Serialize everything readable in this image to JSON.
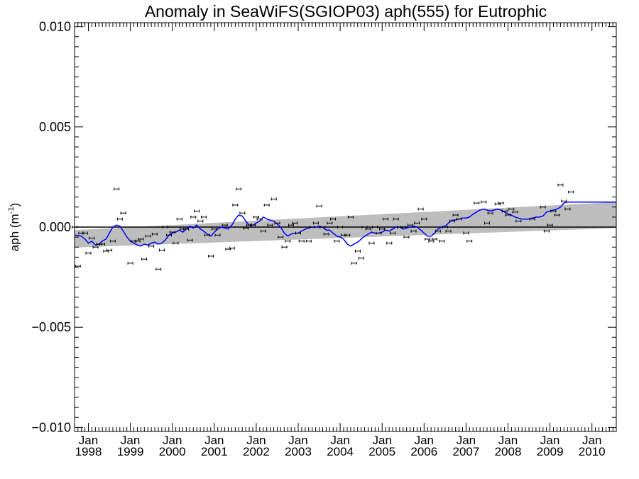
{
  "chart_data": {
    "type": "line",
    "title": "Anomaly in SeaWiFS(SGIOP03) aph(555) for Eutrophic",
    "ylabel_main": "aph (m",
    "ylabel_sup": "-1",
    "ylabel_close": ")",
    "xlim": [
      1997.67,
      2010.58
    ],
    "ylim": [
      -0.0102,
      0.0102
    ],
    "y_ticks": [
      {
        "value": 0.01,
        "label": "0.010"
      },
      {
        "value": 0.005,
        "label": "0.005"
      },
      {
        "value": 0.0,
        "label": "0.000"
      },
      {
        "value": -0.005,
        "label": "−0.005"
      },
      {
        "value": -0.01,
        "label": "−0.010"
      }
    ],
    "x_ticks": [
      {
        "value": 1998.0,
        "month": "Jan",
        "year": "1998"
      },
      {
        "value": 1999.0,
        "month": "Jan",
        "year": "1999"
      },
      {
        "value": 2000.0,
        "month": "Jan",
        "year": "2000"
      },
      {
        "value": 2001.0,
        "month": "Jan",
        "year": "2001"
      },
      {
        "value": 2002.0,
        "month": "Jan",
        "year": "2002"
      },
      {
        "value": 2003.0,
        "month": "Jan",
        "year": "2003"
      },
      {
        "value": 2004.0,
        "month": "Jan",
        "year": "2004"
      },
      {
        "value": 2005.0,
        "month": "Jan",
        "year": "2005"
      },
      {
        "value": 2006.0,
        "month": "Jan",
        "year": "2006"
      },
      {
        "value": 2007.0,
        "month": "Jan",
        "year": "2007"
      },
      {
        "value": 2008.0,
        "month": "Jan",
        "year": "2008"
      },
      {
        "value": 2009.0,
        "month": "Jan",
        "year": "2009"
      },
      {
        "value": 2010.0,
        "month": "Jan",
        "year": "2010"
      }
    ],
    "zero_line": 0.0,
    "trend_band": {
      "x": [
        1997.67,
        2010.58
      ],
      "lower": [
        -0.00102,
        -5e-05
      ],
      "upper": [
        -0.00015,
        0.00125
      ]
    },
    "points": [
      [
        1997.67,
        0.0
      ],
      [
        1997.75,
        -0.00195
      ],
      [
        1997.83,
        -0.0003
      ],
      [
        1997.92,
        -0.0003
      ],
      [
        1998.0,
        -0.0013
      ],
      [
        1998.08,
        -0.00055
      ],
      [
        1998.17,
        -0.001
      ],
      [
        1998.25,
        -0.00085
      ],
      [
        1998.33,
        -0.00085
      ],
      [
        1998.42,
        -0.0012
      ],
      [
        1998.5,
        -0.00115
      ],
      [
        1998.58,
        -0.0007
      ],
      [
        1998.67,
        0.0019
      ],
      [
        1998.75,
        0.0004
      ],
      [
        1998.83,
        0.0007
      ],
      [
        1999.0,
        -0.0018
      ],
      [
        1999.08,
        -0.0007
      ],
      [
        1999.17,
        -0.0007
      ],
      [
        1999.25,
        -0.0006
      ],
      [
        1999.33,
        -0.0016
      ],
      [
        1999.42,
        -0.00045
      ],
      [
        1999.5,
        -0.00095
      ],
      [
        1999.58,
        -0.00035
      ],
      [
        1999.67,
        -0.0021
      ],
      [
        1999.75,
        -0.00115
      ],
      [
        1999.83,
        0.0
      ],
      [
        1999.92,
        -0.0004
      ],
      [
        2000.0,
        -0.00025
      ],
      [
        2000.08,
        -0.0008
      ],
      [
        2000.17,
        0.0004
      ],
      [
        2000.25,
        -0.0001
      ],
      [
        2000.33,
        -0.0001
      ],
      [
        2000.42,
        -0.00065
      ],
      [
        2000.5,
        0.0005
      ],
      [
        2000.58,
        0.0008
      ],
      [
        2000.67,
        0.0003
      ],
      [
        2000.75,
        0.0005
      ],
      [
        2000.83,
        -0.0004
      ],
      [
        2000.92,
        -0.00145
      ],
      [
        2001.0,
        -0.0001
      ],
      [
        2001.08,
        -0.0004
      ],
      [
        2001.25,
        0.0001
      ],
      [
        2001.33,
        -0.0011
      ],
      [
        2001.42,
        -0.00105
      ],
      [
        2001.5,
        0.0011
      ],
      [
        2001.58,
        0.0019
      ],
      [
        2001.67,
        0.0007
      ],
      [
        2001.75,
        -5e-05
      ],
      [
        2001.83,
        0.0001
      ],
      [
        2001.92,
        0.0001
      ],
      [
        2002.0,
        0.0005
      ],
      [
        2002.08,
        0.0004
      ],
      [
        2002.17,
        -0.0002
      ],
      [
        2002.25,
        0.0011
      ],
      [
        2002.33,
        0.0001
      ],
      [
        2002.42,
        0.0014
      ],
      [
        2002.5,
        0.0002
      ],
      [
        2002.58,
        -0.0005
      ],
      [
        2002.67,
        -0.001
      ],
      [
        2002.75,
        -0.0007
      ],
      [
        2002.83,
        0.0001
      ],
      [
        2002.92,
        0.0002
      ],
      [
        2003.0,
        -0.0003
      ],
      [
        2003.08,
        -0.0007
      ],
      [
        2003.25,
        -0.0007
      ],
      [
        2003.33,
        0.0
      ],
      [
        2003.42,
        0.0002
      ],
      [
        2003.5,
        0.00105
      ],
      [
        2003.58,
        0.0
      ],
      [
        2003.67,
        -0.00035
      ],
      [
        2003.75,
        0.0002
      ],
      [
        2003.83,
        0.0004
      ],
      [
        2003.92,
        -0.0007
      ],
      [
        2004.0,
        0.0
      ],
      [
        2004.08,
        -0.0004
      ],
      [
        2004.17,
        -0.0004
      ],
      [
        2004.25,
        0.0005
      ],
      [
        2004.33,
        -0.0018
      ],
      [
        2004.42,
        -0.0012
      ],
      [
        2004.5,
        -0.00155
      ],
      [
        2004.58,
        0.0
      ],
      [
        2004.67,
        -0.0001
      ],
      [
        2004.75,
        -0.0008
      ],
      [
        2004.83,
        0.0
      ],
      [
        2004.92,
        -0.0003
      ],
      [
        2005.0,
        -0.0001
      ],
      [
        2005.08,
        0.0004
      ],
      [
        2005.17,
        -0.0008
      ],
      [
        2005.25,
        -0.0003
      ],
      [
        2005.33,
        0.0004
      ],
      [
        2005.42,
        0.0
      ],
      [
        2005.5,
        0.0
      ],
      [
        2005.58,
        -0.0005
      ],
      [
        2005.67,
        0.0001
      ],
      [
        2005.75,
        -0.0002
      ],
      [
        2005.83,
        0.0002
      ],
      [
        2005.92,
        0.0009
      ],
      [
        2006.0,
        0.0004
      ],
      [
        2006.08,
        -0.0006
      ],
      [
        2006.17,
        -0.0007
      ],
      [
        2006.25,
        -0.0006
      ],
      [
        2006.33,
        -0.0002
      ],
      [
        2006.42,
        -0.0007
      ],
      [
        2006.5,
        0.0
      ],
      [
        2006.58,
        -0.0002
      ],
      [
        2006.67,
        0.0003
      ],
      [
        2006.75,
        0.0006
      ],
      [
        2006.83,
        0.0004
      ],
      [
        2007.0,
        -0.0003
      ],
      [
        2007.08,
        -0.0007
      ],
      [
        2007.25,
        0.0012
      ],
      [
        2007.42,
        0.00125
      ],
      [
        2007.5,
        0.0002
      ],
      [
        2007.58,
        0.0007
      ],
      [
        2007.75,
        0.00115
      ],
      [
        2007.83,
        0.0012
      ],
      [
        2007.92,
        0.0008
      ],
      [
        2008.0,
        0.0006
      ],
      [
        2008.08,
        0.0009
      ],
      [
        2008.17,
        0.00075
      ],
      [
        2008.25,
        0.0003
      ],
      [
        2008.58,
        0.0004
      ],
      [
        2008.83,
        0.001
      ],
      [
        2008.92,
        -0.0002
      ],
      [
        2009.0,
        0.0001
      ],
      [
        2009.08,
        0.0008
      ],
      [
        2009.17,
        0.0006
      ],
      [
        2009.25,
        0.0021
      ],
      [
        2009.33,
        0.0013
      ],
      [
        2009.42,
        0.0009
      ],
      [
        2009.5,
        0.00175
      ]
    ],
    "running_mean": [
      [
        1997.67,
        -0.0004
      ],
      [
        1997.83,
        -0.00045
      ],
      [
        1997.92,
        -0.0006
      ],
      [
        1998.0,
        -0.0008
      ],
      [
        1998.08,
        -0.0007
      ],
      [
        1998.17,
        -0.0009
      ],
      [
        1998.25,
        -0.00085
      ],
      [
        1998.33,
        -0.0007
      ],
      [
        1998.42,
        -0.0006
      ],
      [
        1998.5,
        -0.0003
      ],
      [
        1998.58,
        0.0
      ],
      [
        1998.67,
        0.0001
      ],
      [
        1998.75,
        5e-05
      ],
      [
        1998.83,
        -0.0002
      ],
      [
        1998.92,
        -0.0005
      ],
      [
        1999.0,
        -0.0007
      ],
      [
        1999.08,
        -0.0008
      ],
      [
        1999.17,
        -0.0009
      ],
      [
        1999.25,
        -0.00095
      ],
      [
        1999.33,
        -0.00085
      ],
      [
        1999.42,
        -0.0009
      ],
      [
        1999.5,
        -0.0008
      ],
      [
        1999.58,
        -0.00075
      ],
      [
        1999.67,
        -0.00085
      ],
      [
        1999.75,
        -0.0008
      ],
      [
        1999.83,
        -0.00065
      ],
      [
        1999.92,
        -0.0004
      ],
      [
        2000.0,
        -0.0003
      ],
      [
        2000.08,
        -0.00025
      ],
      [
        2000.17,
        -0.00015
      ],
      [
        2000.25,
        -0.00025
      ],
      [
        2000.33,
        -0.0001
      ],
      [
        2000.42,
        5e-05
      ],
      [
        2000.5,
        -5e-05
      ],
      [
        2000.58,
        0.0001
      ],
      [
        2000.67,
        -0.0001
      ],
      [
        2000.75,
        -0.0002
      ],
      [
        2000.83,
        -0.00035
      ],
      [
        2000.92,
        -0.00045
      ],
      [
        2001.0,
        -0.00025
      ],
      [
        2001.08,
        -0.0001
      ],
      [
        2001.17,
        0.0
      ],
      [
        2001.25,
        -5e-05
      ],
      [
        2001.33,
        -0.0001
      ],
      [
        2001.42,
        0.0001
      ],
      [
        2001.5,
        0.0004
      ],
      [
        2001.58,
        0.0006
      ],
      [
        2001.67,
        0.00055
      ],
      [
        2001.75,
        0.0003
      ],
      [
        2001.83,
        0.0001
      ],
      [
        2001.92,
        0.0001
      ],
      [
        2002.0,
        0.0002
      ],
      [
        2002.08,
        0.0003
      ],
      [
        2002.17,
        0.0005
      ],
      [
        2002.25,
        0.0004
      ],
      [
        2002.33,
        0.00035
      ],
      [
        2002.42,
        0.0003
      ],
      [
        2002.5,
        0.00015
      ],
      [
        2002.58,
        0.0
      ],
      [
        2002.67,
        -0.0003
      ],
      [
        2002.75,
        -0.00045
      ],
      [
        2002.83,
        -0.00035
      ],
      [
        2002.92,
        -0.0003
      ],
      [
        2003.0,
        -0.0003
      ],
      [
        2003.08,
        -0.0002
      ],
      [
        2003.17,
        -0.0001
      ],
      [
        2003.25,
        -5e-05
      ],
      [
        2003.33,
        0.0
      ],
      [
        2003.42,
        0.0
      ],
      [
        2003.5,
        5e-05
      ],
      [
        2003.58,
        0.0
      ],
      [
        2003.67,
        -0.00015
      ],
      [
        2003.75,
        -0.00015
      ],
      [
        2003.83,
        -0.0003
      ],
      [
        2003.92,
        -0.00045
      ],
      [
        2004.0,
        -0.0005
      ],
      [
        2004.08,
        -0.0006
      ],
      [
        2004.17,
        -0.00085
      ],
      [
        2004.25,
        -0.00095
      ],
      [
        2004.33,
        -0.00085
      ],
      [
        2004.42,
        -0.00075
      ],
      [
        2004.5,
        -0.0006
      ],
      [
        2004.58,
        -0.00045
      ],
      [
        2004.67,
        -0.00035
      ],
      [
        2004.75,
        -0.00025
      ],
      [
        2004.83,
        -0.0003
      ],
      [
        2004.92,
        -0.0003
      ],
      [
        2005.0,
        -0.00025
      ],
      [
        2005.08,
        -0.00015
      ],
      [
        2005.17,
        -0.0002
      ],
      [
        2005.25,
        -0.0001
      ],
      [
        2005.33,
        0.0
      ],
      [
        2005.42,
        0.0
      ],
      [
        2005.5,
        -0.0001
      ],
      [
        2005.58,
        -5e-05
      ],
      [
        2005.67,
        0.0
      ],
      [
        2005.75,
        5e-05
      ],
      [
        2005.83,
        0.0
      ],
      [
        2005.92,
        -0.00015
      ],
      [
        2006.0,
        -0.0003
      ],
      [
        2006.08,
        -0.00045
      ],
      [
        2006.17,
        -0.00045
      ],
      [
        2006.25,
        -0.0003
      ],
      [
        2006.33,
        -0.0001
      ],
      [
        2006.42,
        0.0
      ],
      [
        2006.5,
        5e-05
      ],
      [
        2006.58,
        0.0002
      ],
      [
        2006.67,
        0.00035
      ],
      [
        2006.75,
        0.00035
      ],
      [
        2006.83,
        0.0004
      ],
      [
        2006.92,
        0.00045
      ],
      [
        2007.0,
        0.00045
      ],
      [
        2007.08,
        0.0005
      ],
      [
        2007.17,
        0.00065
      ],
      [
        2007.25,
        0.00075
      ],
      [
        2007.33,
        0.00085
      ],
      [
        2007.42,
        0.0009
      ],
      [
        2007.5,
        0.00085
      ],
      [
        2007.58,
        0.0008
      ],
      [
        2007.67,
        0.00085
      ],
      [
        2007.75,
        0.0009
      ],
      [
        2007.83,
        0.00085
      ],
      [
        2007.92,
        0.00075
      ],
      [
        2008.0,
        0.00065
      ],
      [
        2008.08,
        0.0006
      ],
      [
        2008.17,
        0.0005
      ],
      [
        2008.25,
        0.00045
      ],
      [
        2008.33,
        0.0004
      ],
      [
        2008.42,
        0.0004
      ],
      [
        2008.5,
        0.0004
      ],
      [
        2008.58,
        0.00045
      ],
      [
        2008.67,
        0.0005
      ],
      [
        2008.75,
        0.0005
      ],
      [
        2008.83,
        0.00055
      ],
      [
        2008.92,
        0.00075
      ],
      [
        2009.0,
        0.0008
      ],
      [
        2009.08,
        0.00085
      ],
      [
        2009.17,
        0.0009
      ],
      [
        2009.25,
        0.001
      ],
      [
        2009.33,
        0.0012
      ],
      [
        2009.42,
        0.00125
      ],
      [
        2009.5,
        0.00125
      ],
      [
        2010.58,
        0.00125
      ]
    ],
    "colors": {
      "axes": "#000000",
      "points": "#000000",
      "running_mean": "#0000ff",
      "trend_band": "#bdbdbd",
      "zero_line": "#000000"
    }
  }
}
